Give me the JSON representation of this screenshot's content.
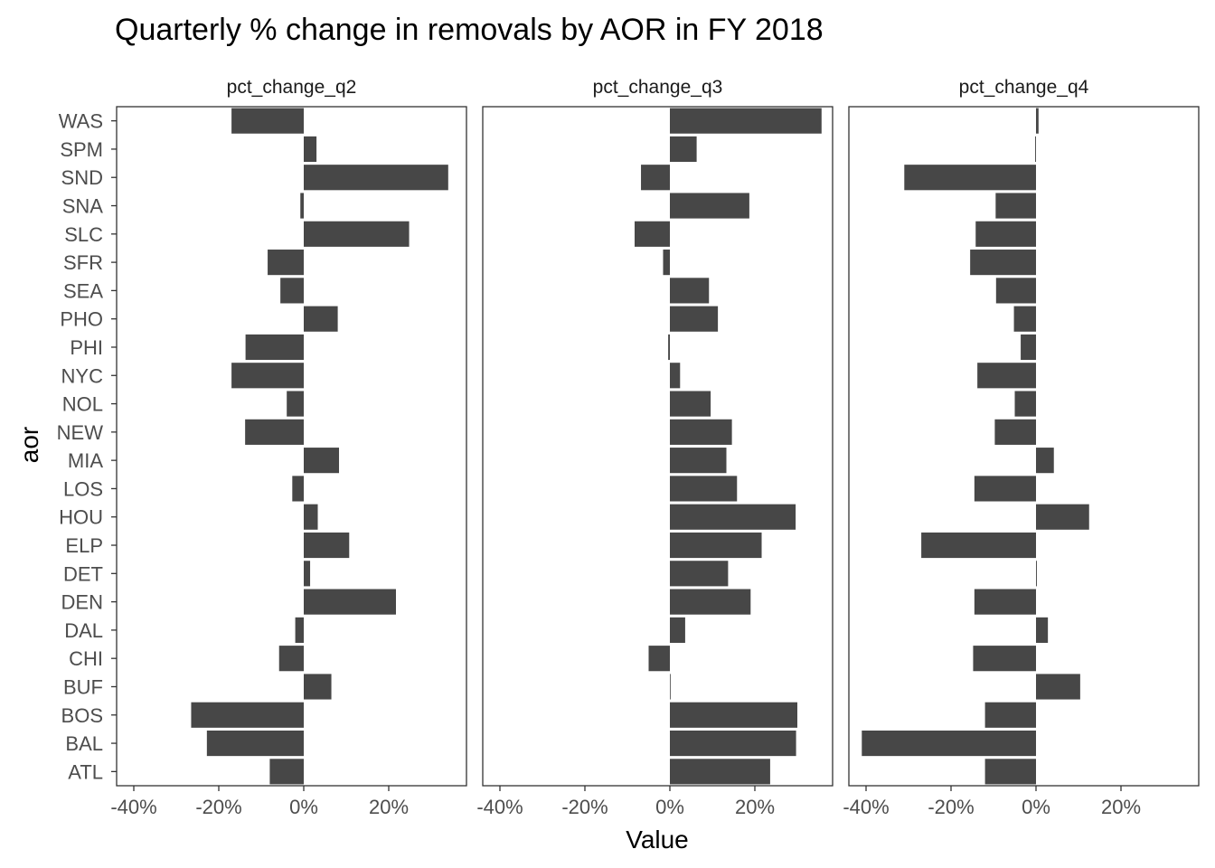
{
  "chart_data": {
    "type": "bar",
    "orientation": "horizontal",
    "faceted": true,
    "title": "Quarterly % change in removals by AOR in FY 2018",
    "xlabel": "Value",
    "ylabel": "aor",
    "xlim": [
      -0.44,
      0.4
    ],
    "x_ticks": [
      -0.4,
      -0.2,
      0,
      0.2
    ],
    "x_tick_labels": [
      "-40%",
      "-20%",
      "0%",
      "20%"
    ],
    "grid": false,
    "legend": "none",
    "bar_color": "#474747",
    "categories": [
      "WAS",
      "SPM",
      "SND",
      "SNA",
      "SLC",
      "SFR",
      "SEA",
      "PHO",
      "PHI",
      "NYC",
      "NOL",
      "NEW",
      "MIA",
      "LOS",
      "HOU",
      "ELP",
      "DET",
      "DEN",
      "DAL",
      "CHI",
      "BUF",
      "BOS",
      "BAL",
      "ATL"
    ],
    "panels": [
      {
        "name": "pct_change_q2",
        "values": [
          -0.17,
          0.03,
          0.34,
          -0.008,
          0.248,
          -0.085,
          -0.055,
          0.08,
          -0.137,
          -0.17,
          -0.04,
          -0.138,
          0.083,
          -0.027,
          0.033,
          0.107,
          0.015,
          0.217,
          -0.02,
          -0.058,
          0.065,
          -0.265,
          -0.228,
          -0.08
        ]
      },
      {
        "name": "pct_change_q3",
        "values": [
          0.357,
          0.063,
          -0.068,
          0.187,
          -0.083,
          -0.016,
          0.092,
          0.113,
          -0.004,
          0.024,
          0.096,
          0.146,
          0.133,
          0.158,
          0.296,
          0.216,
          0.137,
          0.19,
          0.036,
          -0.05,
          0,
          0.3,
          0.297,
          0.236
        ]
      },
      {
        "name": "pct_change_q4",
        "values": [
          0.006,
          -0.002,
          -0.31,
          -0.095,
          -0.142,
          -0.155,
          -0.094,
          -0.052,
          -0.036,
          -0.138,
          -0.05,
          -0.097,
          0.042,
          -0.145,
          0.125,
          -0.27,
          0.002,
          -0.145,
          0.028,
          -0.148,
          0.104,
          -0.12,
          -0.41,
          -0.12
        ]
      }
    ]
  }
}
